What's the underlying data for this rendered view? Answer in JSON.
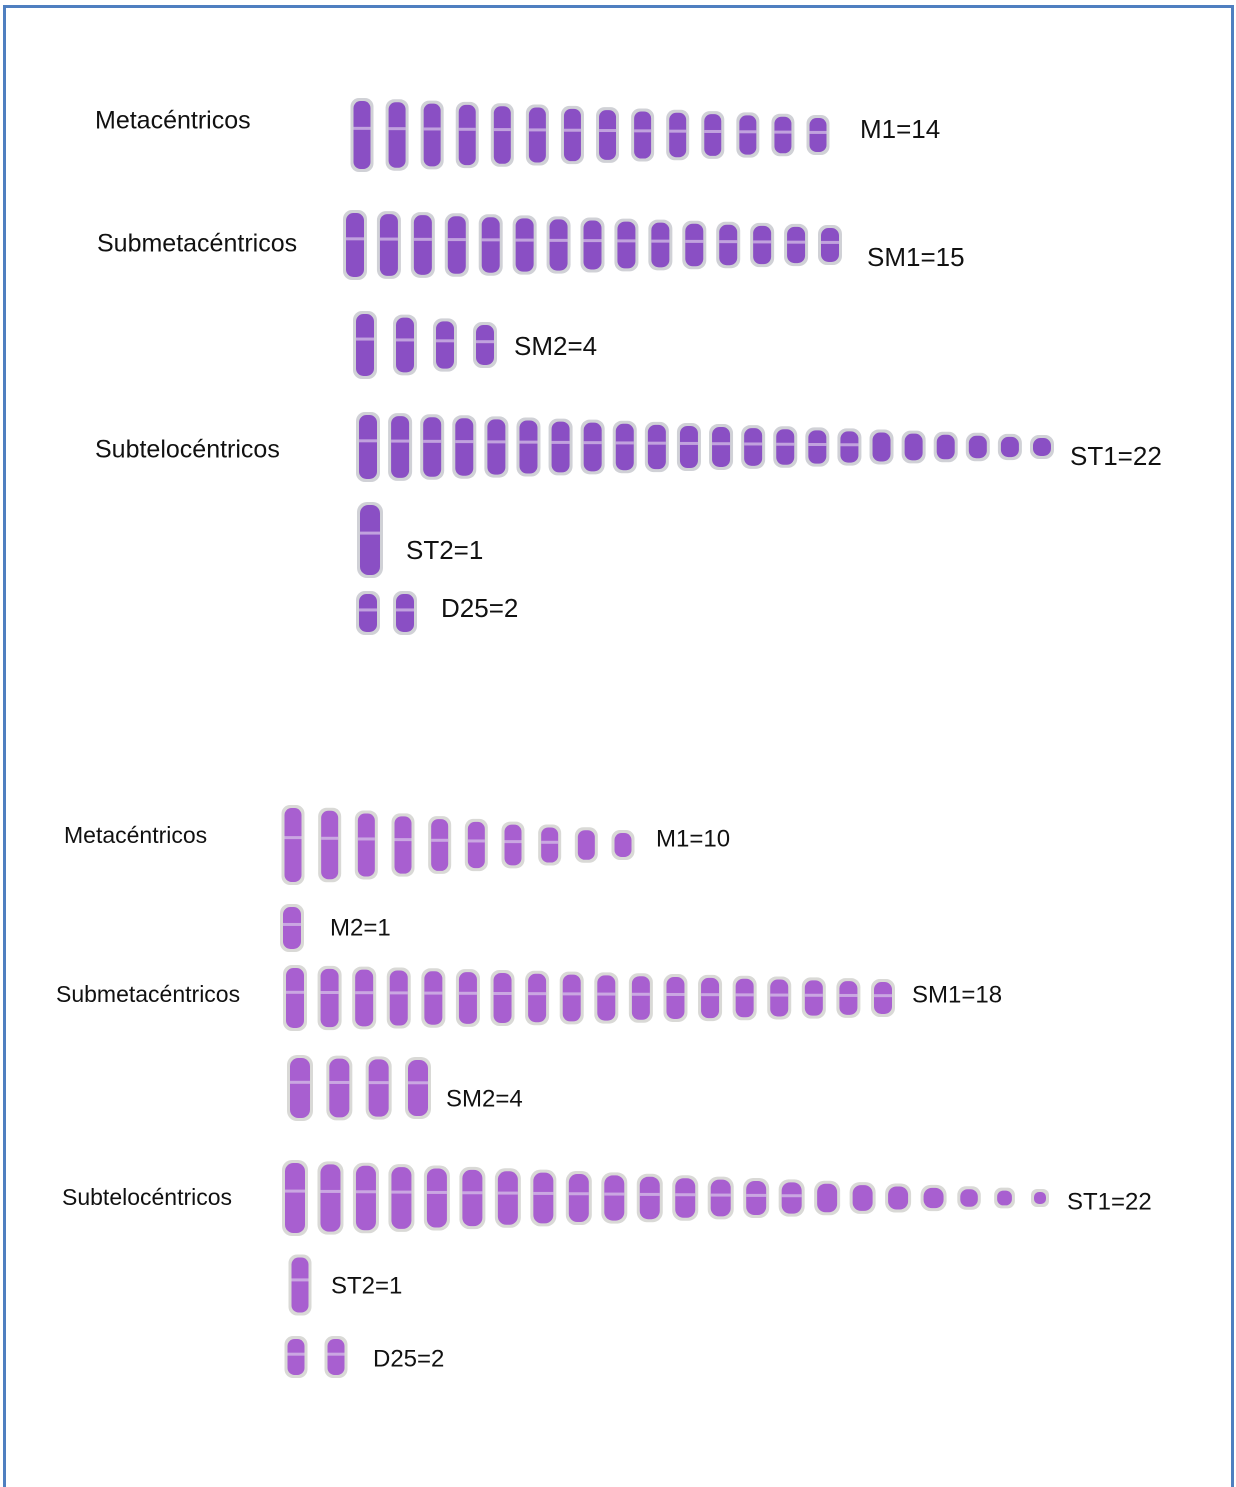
{
  "karyotypes": [
    {
      "groups": [
        {
          "name": "Metacéntricos",
          "rows": [
            "M1=14"
          ]
        },
        {
          "name": "Submetacéntricos",
          "rows": [
            "SM1=15",
            "SM2=4"
          ]
        },
        {
          "name": "Subtelocéntricos",
          "rows": [
            "ST1=22",
            "ST2=1",
            "D25=2"
          ]
        }
      ]
    },
    {
      "groups": [
        {
          "name": "Metacéntricos",
          "rows": [
            "M1=10",
            "M2=1"
          ]
        },
        {
          "name": "Submetacéntricos",
          "rows": [
            "SM1=18",
            "SM2=4"
          ]
        },
        {
          "name": "Subtelocéntricos",
          "rows": [
            "ST1=22",
            "ST2=1",
            "D25=2"
          ]
        }
      ]
    }
  ]
}
